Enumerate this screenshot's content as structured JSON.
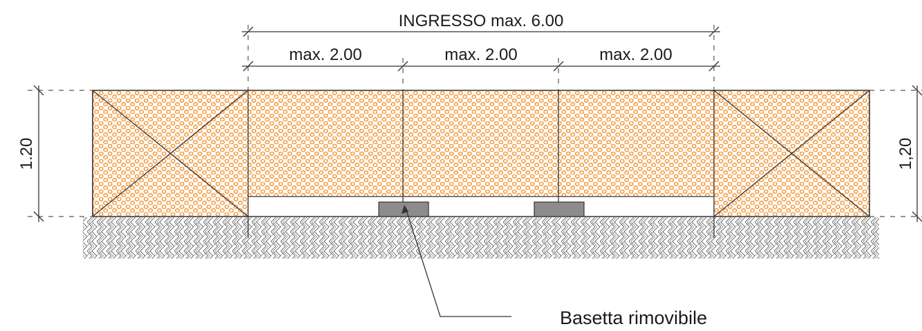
{
  "drawing": {
    "entrance_label": "INGRESSO max. 6.00",
    "section_labels": [
      "max. 2.00",
      "max. 2.00",
      "max. 2.00"
    ],
    "height_left_label": "1.20",
    "height_right_label": "1,20",
    "base_note": "Basetta rimovibile",
    "colors": {
      "mesh": "#f39a3e",
      "line": "#333333",
      "base": "#8c8c8c",
      "ground": "#6f6f6f"
    }
  }
}
